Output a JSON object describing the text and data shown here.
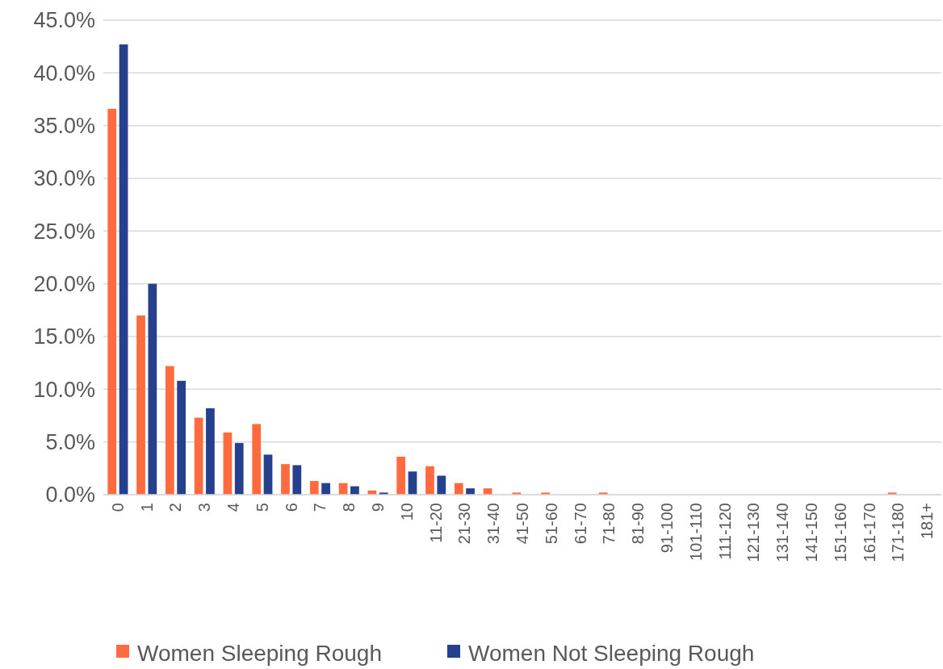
{
  "chart_data": {
    "type": "bar",
    "categories": [
      "0",
      "1",
      "2",
      "3",
      "4",
      "5",
      "6",
      "7",
      "8",
      "9",
      "10",
      "11-20",
      "21-30",
      "31-40",
      "41-50",
      "51-60",
      "61-70",
      "71-80",
      "81-90",
      "91-100",
      "101-110",
      "111-120",
      "121-130",
      "131-140",
      "141-150",
      "151-160",
      "161-170",
      "171-180",
      "181+"
    ],
    "series": [
      {
        "name": "Women Sleeping Rough",
        "color": "#ff6b3f",
        "values": [
          36.6,
          17.0,
          12.2,
          7.3,
          5.9,
          6.7,
          2.9,
          1.3,
          1.1,
          0.4,
          3.6,
          2.7,
          1.1,
          0.6,
          0.2,
          0.2,
          0,
          0.2,
          0,
          0,
          0,
          0,
          0,
          0,
          0,
          0,
          0,
          0.2,
          0
        ]
      },
      {
        "name": "Women Not Sleeping Rough",
        "color": "#25418e",
        "values": [
          42.7,
          20.0,
          10.8,
          8.2,
          4.9,
          3.8,
          2.8,
          1.1,
          0.8,
          0.2,
          2.2,
          1.8,
          0.6,
          0,
          null,
          0,
          0,
          0,
          0,
          0,
          0,
          0,
          0,
          0,
          0,
          0,
          0,
          0,
          0
        ]
      }
    ],
    "ylim": [
      0,
      45
    ],
    "yticks": [
      {
        "value": 0,
        "label": "0.0%"
      },
      {
        "value": 5,
        "label": "5.0%"
      },
      {
        "value": 10,
        "label": "10.0%"
      },
      {
        "value": 15,
        "label": "15.0%"
      },
      {
        "value": 20,
        "label": "20.0%"
      },
      {
        "value": 25,
        "label": "25.0%"
      },
      {
        "value": 30,
        "label": "30.0%"
      },
      {
        "value": 35,
        "label": "35.0%"
      },
      {
        "value": 40,
        "label": "40.0%"
      },
      {
        "value": 45,
        "label": "45.0%"
      }
    ],
    "grid": "y",
    "legend": "bottom"
  }
}
